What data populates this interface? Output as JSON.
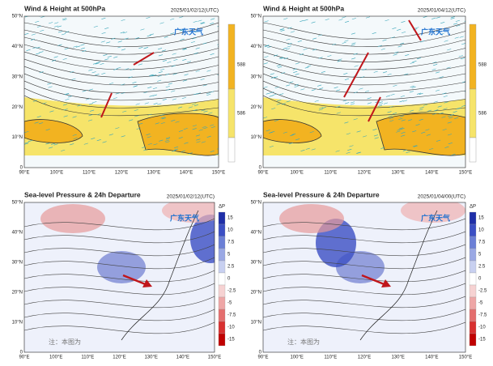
{
  "panels": [
    {
      "title": "Wind & Height at 500hPa",
      "time": "2025/01/02/12(UTC)",
      "logo": "广东天气",
      "colorbar": [
        "588",
        "586"
      ]
    },
    {
      "title": "Wind & Height at 500hPa",
      "time": "2025/01/04/12(UTC)",
      "logo": "广东天气",
      "colorbar": [
        "588",
        "586"
      ]
    },
    {
      "title": "Sea-level Pressure & 24h Departure",
      "time": "2025/01/02/12(UTC)",
      "logo": "广东天气",
      "note": "注：本图为",
      "colorbar_title": "ΔP",
      "colorbar": [
        "15",
        "10",
        "7.5",
        "5",
        "2.5",
        "0",
        "-2.5",
        "-5",
        "-7.5",
        "-10",
        "-15"
      ]
    },
    {
      "title": "Sea-level Pressure & 24h Departure",
      "time": "2025/01/04/00(UTC)",
      "logo": "广东天气",
      "note": "注：本图为",
      "colorbar_title": "ΔP",
      "colorbar": [
        "15",
        "10",
        "7.5",
        "5",
        "2.5",
        "0",
        "-2.5",
        "-5",
        "-7.5",
        "-10",
        "-15"
      ]
    }
  ],
  "x_labels": [
    "90°E",
    "100°E",
    "110°E",
    "120°E",
    "130°E",
    "140°E",
    "150°E"
  ],
  "y_labels": [
    "0",
    "10°N",
    "20°N",
    "30°N",
    "40°N",
    "50°N"
  ]
}
